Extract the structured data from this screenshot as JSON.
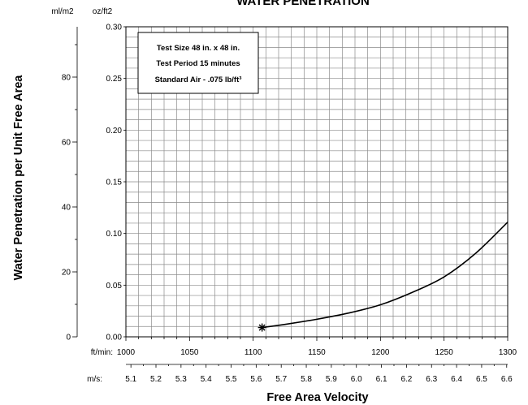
{
  "chart_data": {
    "type": "line",
    "title": "WATER PENETRATION",
    "xlabel": "Free Area Velocity",
    "ylabel": "Water Penetration per Unit Free Area",
    "grid": true,
    "x_axes": [
      {
        "unit_label": "ft/min:",
        "range": [
          1000,
          1300
        ],
        "minor_step": 10,
        "tick_values": [
          1000,
          1050,
          1100,
          1150,
          1200,
          1250,
          1300
        ],
        "tick_labels": [
          "1000",
          "1050",
          "1100",
          "1150",
          "1200",
          "1250",
          "1300"
        ]
      },
      {
        "unit_label": "m/s:",
        "tick_values": [
          5.1,
          5.2,
          5.3,
          5.4,
          5.5,
          5.6,
          5.7,
          5.8,
          5.9,
          6.0,
          6.1,
          6.2,
          6.3,
          6.4,
          6.5,
          6.6
        ],
        "tick_labels": [
          "5.1",
          "5.2",
          "5.3",
          "5.4",
          "5.5",
          "5.6",
          "5.7",
          "5.8",
          "5.9",
          "6.0",
          "6.1",
          "6.2",
          "6.3",
          "6.4",
          "6.5",
          "6.6"
        ]
      }
    ],
    "y_axes": [
      {
        "unit_label": "oz/ft2",
        "range": [
          0,
          0.3
        ],
        "minor_step": 0.01,
        "tick_values": [
          0,
          0.05,
          0.1,
          0.15,
          0.2,
          0.25,
          0.3
        ],
        "tick_labels": [
          "0.00",
          "0.05",
          "0.10",
          "0.15",
          "0.20",
          "0.25",
          "0.30"
        ]
      },
      {
        "unit_label": "ml/m2",
        "minor_step": 10,
        "tick_values": [
          0,
          20,
          40,
          60,
          80
        ],
        "tick_labels": [
          "0",
          "20",
          "40",
          "60",
          "80"
        ]
      }
    ],
    "series": [
      {
        "x": [
          1107,
          1125,
          1150,
          1175,
          1200,
          1225,
          1250,
          1275,
          1300
        ],
        "y": [
          0.009,
          0.012,
          0.017,
          0.023,
          0.031,
          0.043,
          0.058,
          0.081,
          0.111
        ],
        "start_marker": "asterisk"
      }
    ],
    "annotation": {
      "position": "top-left",
      "lines": [
        "Test Size 48 in. x 48 in.",
        "Test Period 15 minutes",
        "Standard Air - .075 lb/ft³"
      ]
    }
  },
  "colors": {
    "line": "#000000",
    "grid": "#8a8a8a",
    "axis": "#000000",
    "background": "#ffffff"
  }
}
